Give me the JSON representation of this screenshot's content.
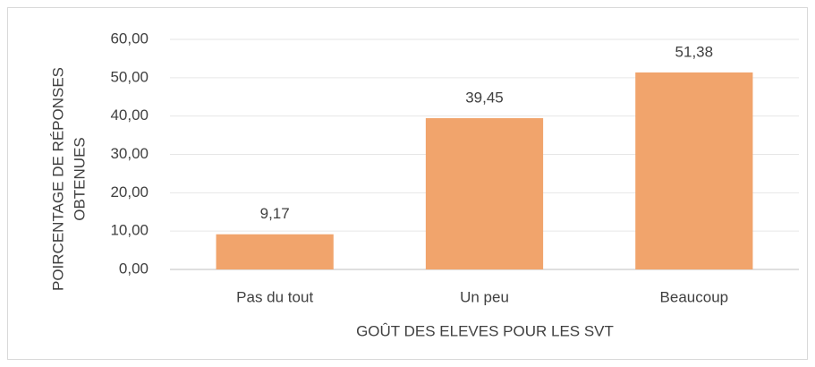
{
  "chart_data": {
    "type": "bar",
    "xlabel": "GOÛT DES ELEVES POUR LES SVT",
    "ylabel": [
      "POIRCENTAGE DE RÉPONSES",
      "OBTENUES"
    ],
    "categories": [
      "Pas du tout",
      "Un peu",
      "Beaucoup"
    ],
    "values": [
      9.17,
      39.45,
      51.38
    ],
    "value_labels": [
      "9,17",
      "39,45",
      "51,38"
    ],
    "color": "#f1a46c",
    "ylim": [
      0,
      60
    ],
    "yticks": [
      {
        "value": 0,
        "label": "0,00"
      },
      {
        "value": 10,
        "label": "10,00"
      },
      {
        "value": 20,
        "label": "20,00"
      },
      {
        "value": 30,
        "label": "30,00"
      },
      {
        "value": 40,
        "label": "40,00"
      },
      {
        "value": 50,
        "label": "50,00"
      },
      {
        "value": 60,
        "label": "60,00"
      }
    ],
    "grid": true
  }
}
